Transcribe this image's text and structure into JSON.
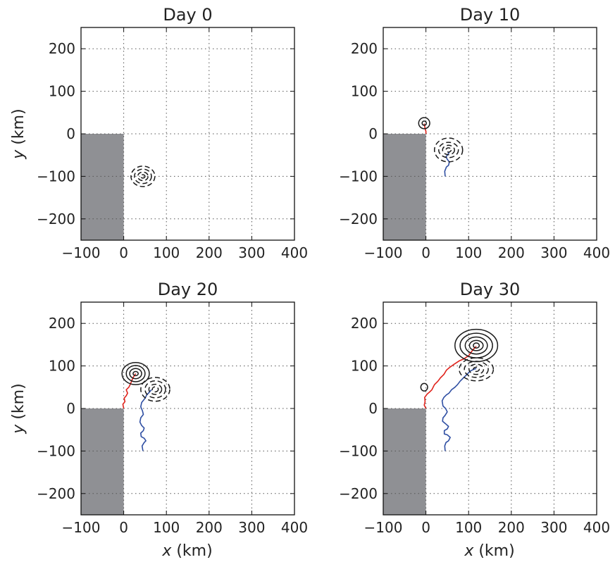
{
  "figure": {
    "xlabel_var": "x",
    "xlabel_unit": " (km)",
    "ylabel_var": "y",
    "ylabel_unit": " (km)"
  },
  "colors": {
    "land": "#8f9094",
    "grid": "#555555",
    "contour": "#1a1a1a",
    "red_track": "#e0221b",
    "blue_track": "#2f4fa3",
    "frame": "#111111"
  },
  "chart_data": [
    {
      "type": "line",
      "title": "Day 0",
      "xlim": [
        -100,
        400
      ],
      "ylim": [
        -250,
        250
      ],
      "xticks": [
        -100,
        0,
        100,
        200,
        300,
        400
      ],
      "xtick_labels": [
        "−100",
        "0",
        "100",
        "200",
        "300",
        "400"
      ],
      "yticks": [
        200,
        100,
        0,
        -100,
        -200
      ],
      "ytick_labels": [
        "200",
        "100",
        "0",
        "−100",
        "−200"
      ],
      "grid": true,
      "land": {
        "x": [
          -100,
          0
        ],
        "y": [
          -250,
          0
        ]
      },
      "red_track": [],
      "blue_track": [],
      "eddies": [
        {
          "cx": 45,
          "cy": -100,
          "sign": "negative",
          "radii": [
            [
              5,
              4
            ],
            [
              12,
              10
            ],
            [
              20,
              17
            ],
            [
              28,
              24
            ]
          ]
        }
      ]
    },
    {
      "type": "line",
      "title": "Day 10",
      "xlim": [
        -100,
        400
      ],
      "ylim": [
        -250,
        250
      ],
      "xticks": [
        -100,
        0,
        100,
        200,
        300,
        400
      ],
      "xtick_labels": [
        "−100",
        "0",
        "100",
        "200",
        "300",
        "400"
      ],
      "yticks": [
        200,
        100,
        0,
        -100,
        -200
      ],
      "ytick_labels": [
        "200",
        "100",
        "0",
        "−100",
        "−200"
      ],
      "grid": true,
      "land": {
        "x": [
          -100,
          0
        ],
        "y": [
          -250,
          0
        ]
      },
      "red_track": [
        [
          0,
          0
        ],
        [
          0,
          6
        ],
        [
          -2,
          12
        ],
        [
          -3,
          18
        ],
        [
          -4,
          24
        ]
      ],
      "blue_track": [
        [
          45,
          -100
        ],
        [
          44,
          -88
        ],
        [
          48,
          -78
        ],
        [
          53,
          -74
        ],
        [
          55,
          -66
        ],
        [
          50,
          -60
        ],
        [
          47,
          -54
        ],
        [
          52,
          -48
        ],
        [
          55,
          -42
        ]
      ],
      "eddies": [
        {
          "cx": -4,
          "cy": 25,
          "sign": "positive",
          "radii": [
            [
              5,
              5
            ],
            [
              13,
              13
            ]
          ]
        },
        {
          "cx": 53,
          "cy": -38,
          "sign": "negative",
          "radii": [
            [
              6,
              5
            ],
            [
              14,
              11
            ],
            [
              23,
              18
            ],
            [
              33,
              28
            ]
          ]
        }
      ]
    },
    {
      "type": "line",
      "title": "Day 20",
      "xlim": [
        -100,
        400
      ],
      "ylim": [
        -250,
        250
      ],
      "xticks": [
        -100,
        0,
        100,
        200,
        300,
        400
      ],
      "xtick_labels": [
        "−100",
        "0",
        "100",
        "200",
        "300",
        "400"
      ],
      "yticks": [
        200,
        100,
        0,
        -100,
        -200
      ],
      "ytick_labels": [
        "200",
        "100",
        "0",
        "−100",
        "−200"
      ],
      "grid": true,
      "land": {
        "x": [
          -100,
          0
        ],
        "y": [
          -250,
          0
        ]
      },
      "red_track": [
        [
          0,
          0
        ],
        [
          -2,
          10
        ],
        [
          3,
          16
        ],
        [
          1,
          24
        ],
        [
          6,
          30
        ],
        [
          9,
          36
        ],
        [
          6,
          44
        ],
        [
          12,
          50
        ],
        [
          16,
          58
        ],
        [
          19,
          66
        ],
        [
          23,
          74
        ],
        [
          28,
          82
        ]
      ],
      "blue_track": [
        [
          45,
          -100
        ],
        [
          43,
          -88
        ],
        [
          48,
          -80
        ],
        [
          52,
          -76
        ],
        [
          48,
          -70
        ],
        [
          41,
          -66
        ],
        [
          40,
          -58
        ],
        [
          46,
          -52
        ],
        [
          48,
          -46
        ],
        [
          42,
          -40
        ],
        [
          38,
          -32
        ],
        [
          40,
          -22
        ],
        [
          46,
          -14
        ],
        [
          44,
          -6
        ],
        [
          40,
          4
        ],
        [
          42,
          14
        ],
        [
          50,
          24
        ],
        [
          54,
          32
        ],
        [
          60,
          38
        ],
        [
          65,
          44
        ]
      ],
      "eddies": [
        {
          "cx": 28,
          "cy": 82,
          "sign": "positive",
          "radii": [
            [
              6,
              5
            ],
            [
              14,
              12
            ],
            [
              22,
              19
            ],
            [
              32,
              26
            ]
          ]
        },
        {
          "cx": 74,
          "cy": 45,
          "sign": "negative",
          "radii": [
            [
              7,
              6
            ],
            [
              15,
              12
            ],
            [
              24,
              20
            ],
            [
              34,
              28
            ]
          ]
        }
      ]
    },
    {
      "type": "line",
      "title": "Day 30",
      "xlim": [
        -100,
        400
      ],
      "ylim": [
        -250,
        250
      ],
      "xticks": [
        -100,
        0,
        100,
        200,
        300,
        400
      ],
      "xtick_labels": [
        "−100",
        "0",
        "100",
        "200",
        "300",
        "400"
      ],
      "yticks": [
        200,
        100,
        0,
        -100,
        -200
      ],
      "ytick_labels": [
        "200",
        "100",
        "0",
        "−100",
        "−200"
      ],
      "grid": true,
      "land": {
        "x": [
          -100,
          0
        ],
        "y": [
          -250,
          0
        ]
      },
      "red_track": [
        [
          0,
          0
        ],
        [
          -4,
          8
        ],
        [
          -2,
          16
        ],
        [
          -3,
          26
        ],
        [
          3,
          34
        ],
        [
          8,
          38
        ],
        [
          14,
          44
        ],
        [
          20,
          56
        ],
        [
          28,
          64
        ],
        [
          34,
          72
        ],
        [
          42,
          80
        ],
        [
          48,
          90
        ],
        [
          55,
          96
        ],
        [
          66,
          104
        ],
        [
          78,
          112
        ],
        [
          88,
          116
        ],
        [
          100,
          124
        ],
        [
          110,
          138
        ],
        [
          118,
          146
        ]
      ],
      "blue_track": [
        [
          45,
          -100
        ],
        [
          44,
          -88
        ],
        [
          47,
          -80
        ],
        [
          53,
          -76
        ],
        [
          57,
          -68
        ],
        [
          50,
          -62
        ],
        [
          43,
          -60
        ],
        [
          43,
          -52
        ],
        [
          50,
          -48
        ],
        [
          53,
          -42
        ],
        [
          46,
          -36
        ],
        [
          39,
          -30
        ],
        [
          40,
          -22
        ],
        [
          45,
          -16
        ],
        [
          50,
          -8
        ],
        [
          46,
          0
        ],
        [
          40,
          6
        ],
        [
          38,
          18
        ],
        [
          42,
          26
        ],
        [
          48,
          32
        ],
        [
          54,
          36
        ],
        [
          60,
          44
        ],
        [
          68,
          50
        ],
        [
          74,
          56
        ],
        [
          80,
          64
        ],
        [
          88,
          72
        ],
        [
          96,
          80
        ],
        [
          104,
          88
        ],
        [
          112,
          92
        ],
        [
          118,
          94
        ]
      ],
      "eddies": [
        {
          "cx": 118,
          "cy": 148,
          "sign": "positive",
          "radii": [
            [
              7,
              6
            ],
            [
              16,
              12
            ],
            [
              26,
              20
            ],
            [
              38,
              29
            ],
            [
              50,
              38
            ]
          ]
        },
        {
          "cx": -4,
          "cy": 50,
          "sign": "positive",
          "radii": [
            [
              8,
              9
            ]
          ]
        },
        {
          "cx": 118,
          "cy": 92,
          "sign": "negative",
          "radii": [
            [
              7,
              5
            ],
            [
              17,
              12
            ],
            [
              28,
              19
            ],
            [
              40,
              27
            ]
          ]
        }
      ]
    }
  ]
}
